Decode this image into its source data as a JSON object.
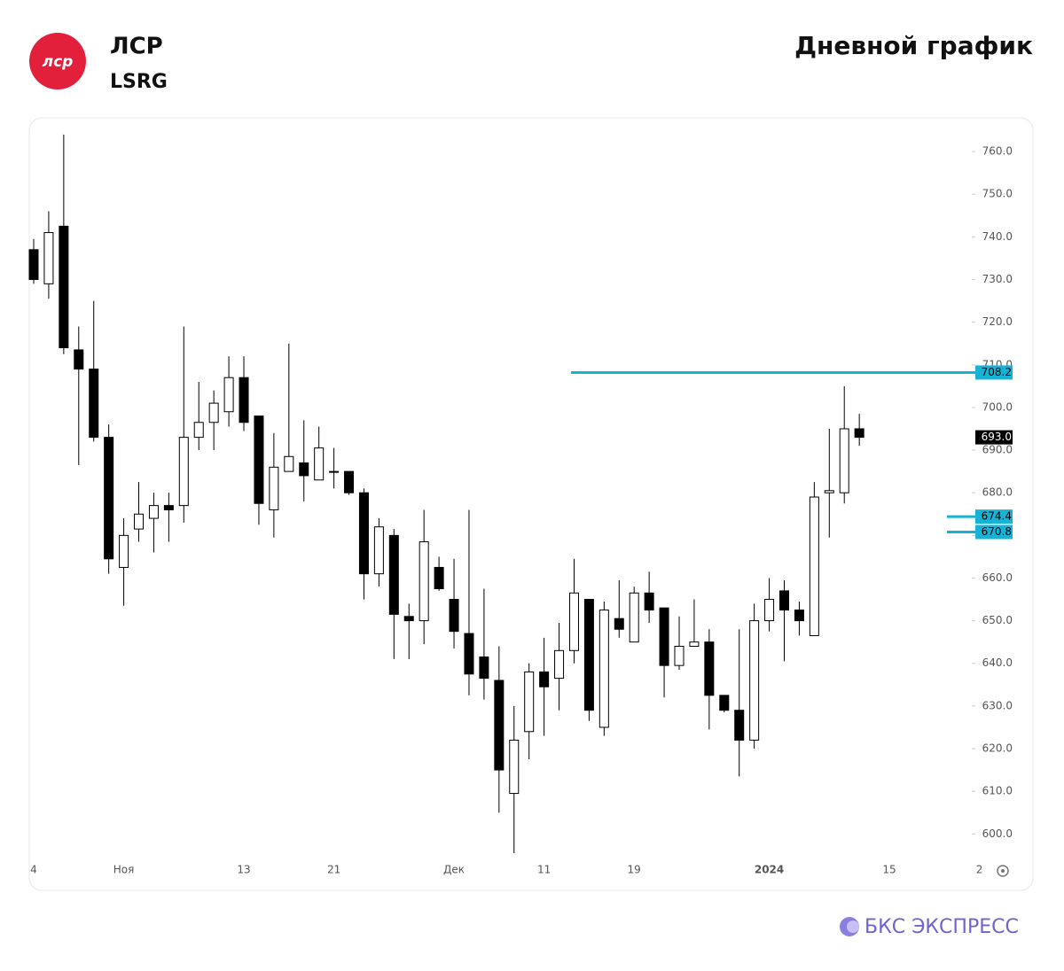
{
  "header": {
    "logo_text": "лср",
    "company": "ЛСР",
    "ticker": "LSRG",
    "chart_label": "Дневной график"
  },
  "footer": {
    "brand": "БКС ЭКСПРЕСС"
  },
  "chart_data": {
    "type": "candlestick",
    "categories": [
      "4",
      null,
      null,
      null,
      null,
      null,
      "Ноя",
      null,
      null,
      null,
      null,
      null,
      null,
      null,
      "13",
      null,
      null,
      null,
      null,
      null,
      "21",
      null,
      null,
      null,
      null,
      null,
      null,
      null,
      "Дек",
      null,
      null,
      null,
      null,
      null,
      "11",
      null,
      null,
      null,
      null,
      null,
      "19",
      null,
      null,
      null,
      null,
      null,
      null,
      null,
      null,
      "2024",
      null,
      null,
      null,
      null,
      null,
      null,
      null,
      "15",
      null,
      null,
      null,
      null,
      null,
      "2"
    ],
    "open": [
      737,
      729,
      742.5,
      713.5,
      709,
      693,
      662.5,
      671.5,
      674,
      677,
      677,
      693,
      696.5,
      699,
      707,
      698,
      676,
      685,
      687,
      683,
      685,
      685,
      680,
      661,
      670,
      651,
      650,
      662.5,
      655,
      647,
      641.5,
      636,
      609.5,
      624,
      638,
      636.5,
      643,
      655,
      625,
      650.5,
      645,
      656.5,
      653,
      639.5,
      644,
      645,
      632.5,
      629,
      622,
      650,
      657,
      652.5,
      646.5,
      680,
      680,
      695,
      null,
      null,
      null,
      null,
      null,
      null,
      null,
      null
    ],
    "high": [
      739.5,
      746,
      764,
      719,
      725,
      696,
      674,
      682.5,
      680,
      680,
      719,
      706,
      704,
      712,
      712,
      698,
      694,
      715,
      697,
      695.5,
      690.5,
      685,
      681,
      674,
      671.5,
      654,
      676,
      665,
      664.5,
      676,
      657.5,
      644,
      630,
      640,
      646,
      649.5,
      664.5,
      655,
      654.5,
      659.5,
      658,
      661.5,
      653,
      651,
      655,
      648,
      632.5,
      648,
      654,
      660,
      659.5,
      654.5,
      682.5,
      695,
      705,
      698.5,
      null,
      null,
      null,
      null,
      null,
      null,
      null,
      null
    ],
    "low": [
      729,
      725.5,
      712.5,
      686.5,
      692,
      661,
      653.5,
      668.5,
      666,
      668.5,
      673,
      690,
      690,
      695.5,
      694.5,
      672.5,
      669.5,
      685,
      678,
      683,
      681,
      679.5,
      655,
      658,
      641,
      641,
      644.5,
      657,
      643.5,
      632.5,
      631.5,
      605,
      595.5,
      617.5,
      623,
      629,
      640,
      626.5,
      623,
      646,
      645,
      649.5,
      632,
      638.5,
      644,
      624.5,
      628.5,
      613.5,
      620,
      647.5,
      640.5,
      646.5,
      646.5,
      669.5,
      677.5,
      691,
      null,
      null,
      null,
      null,
      null,
      null,
      null,
      null
    ],
    "close": [
      730,
      741,
      714,
      709,
      693,
      664.5,
      670,
      675,
      677,
      676,
      693,
      696.5,
      701,
      707,
      696.5,
      677.5,
      686,
      688.5,
      684,
      690.5,
      685,
      680,
      661,
      672,
      651.5,
      650,
      668.5,
      657.5,
      647.5,
      637.5,
      636.5,
      615,
      622,
      638,
      634.5,
      643,
      656.5,
      629,
      652.5,
      648,
      656.5,
      652.5,
      639.5,
      644,
      645,
      632.5,
      629,
      622,
      650,
      655,
      652.5,
      650,
      679,
      680.5,
      695,
      693,
      null,
      null,
      null,
      null,
      null,
      null,
      null,
      null
    ],
    "up_color": "#ffffff",
    "down_color": "#000000",
    "ylim": [
      593,
      766.5
    ],
    "yticks": [
      {
        "value": 600,
        "label": "600.0"
      },
      {
        "value": 610,
        "label": "610.0"
      },
      {
        "value": 620,
        "label": "620.0"
      },
      {
        "value": 630,
        "label": "630.0"
      },
      {
        "value": 640,
        "label": "640.0"
      },
      {
        "value": 650,
        "label": "650.0"
      },
      {
        "value": 660,
        "label": "660.0"
      },
      {
        "value": 670,
        "label": "670.0"
      },
      {
        "value": 680,
        "label": "680.0"
      },
      {
        "value": 690,
        "label": "690.0"
      },
      {
        "value": 700,
        "label": "700.0"
      },
      {
        "value": 710,
        "label": "710.0"
      },
      {
        "value": 720,
        "label": "720.0"
      },
      {
        "value": 730,
        "label": "730.0"
      },
      {
        "value": 740,
        "label": "740.0"
      },
      {
        "value": 750,
        "label": "750.0"
      },
      {
        "value": 760,
        "label": "760.0"
      }
    ],
    "levels": [
      {
        "value": 708.2
      },
      {
        "value": 674.4
      },
      {
        "value": 670.8
      }
    ],
    "level_color": "#17b3d6",
    "last_price": {
      "value": 693,
      "label": "693.0"
    }
  }
}
